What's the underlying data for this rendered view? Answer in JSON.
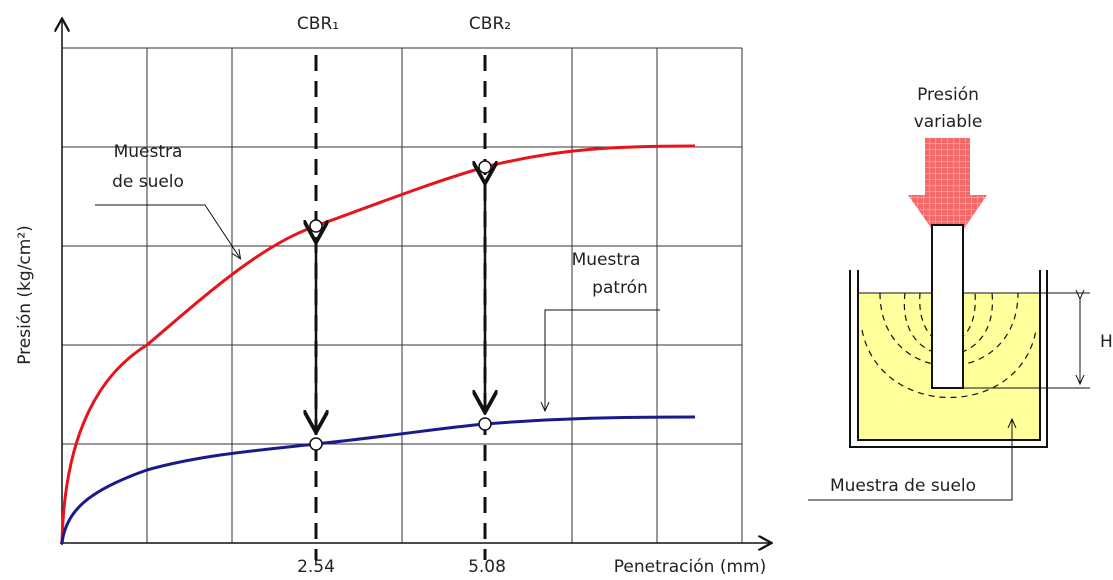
{
  "chart": {
    "y_axis_label": "Presión (kg/cm²)",
    "x_axis_label": "Penetración (mm)",
    "x_ticks": [
      "2.54",
      "5.08"
    ],
    "markers": [
      "CBR₁",
      "CBR₂"
    ],
    "curve_labels": [
      [
        "Muestra",
        "de suelo"
      ],
      [
        "Muestra",
        "patrón"
      ]
    ]
  },
  "apparatus": {
    "load_label": [
      "Presión",
      "variable"
    ],
    "height_label": "H",
    "sample_label": "Muestra de suelo"
  }
}
